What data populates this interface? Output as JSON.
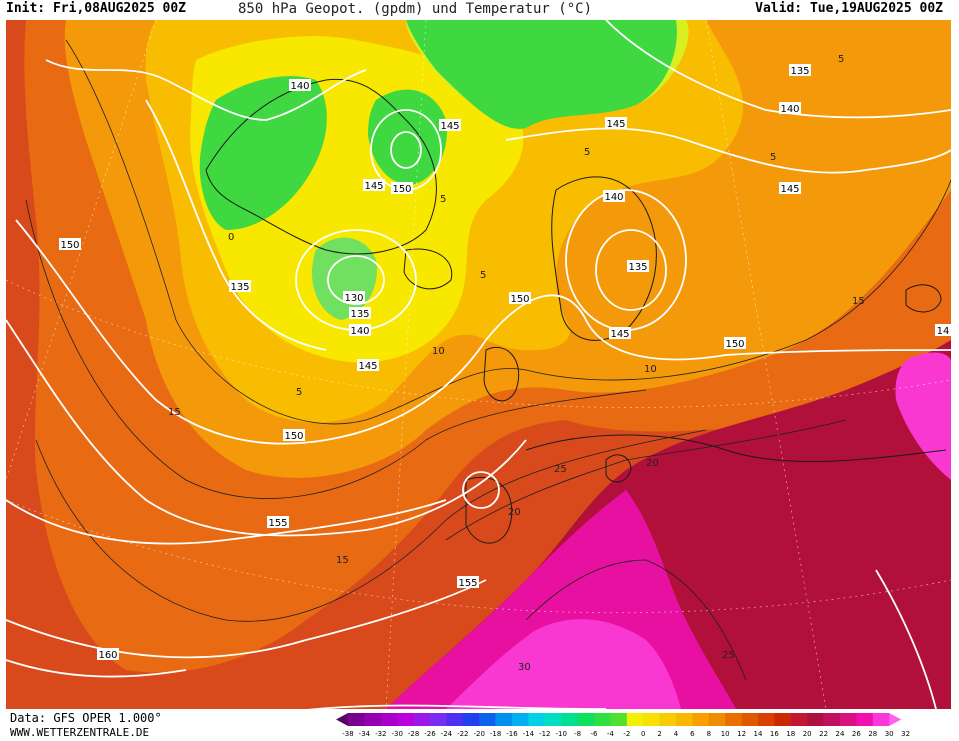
{
  "header": {
    "init": "Init: Fri,08AUG2025 00Z",
    "title": "850 hPa Geopot. (gpdm) und Temperatur (°C)",
    "valid": "Valid: Tue,19AUG2025 00Z"
  },
  "footer": {
    "source": "Data: GFS OPER 1.000°",
    "site": "WWW.WETTERZENTRALE.DE"
  },
  "legend": {
    "labels": [
      "-38",
      "-34",
      "-32",
      "-30",
      "-28",
      "-26",
      "-24",
      "-22",
      "-20",
      "-18",
      "-16",
      "-14",
      "-12",
      "-10",
      "-8",
      "-6",
      "-4",
      "-2",
      "0",
      "2",
      "4",
      "6",
      "8",
      "10",
      "12",
      "14",
      "16",
      "18",
      "20",
      "22",
      "24",
      "26",
      "28",
      "30",
      "32"
    ],
    "colors": [
      "#5a0066",
      "#7a0090",
      "#9400b0",
      "#a800c8",
      "#bb00dd",
      "#9a18e6",
      "#7a2cf0",
      "#5030f0",
      "#2040f0",
      "#1060f0",
      "#0090f0",
      "#00b0f0",
      "#00d0e8",
      "#00e0c0",
      "#00e090",
      "#10e060",
      "#30e040",
      "#50e030",
      "#f0f000",
      "#f8e000",
      "#f8cc00",
      "#f8b800",
      "#f8a000",
      "#f08c00",
      "#e87000",
      "#e05800",
      "#d84000",
      "#cc2800",
      "#c01830",
      "#b01040",
      "#c01060",
      "#d81080",
      "#f010b0",
      "#f838d8",
      "#ff60f0"
    ]
  },
  "map": {
    "colors": {
      "deep_orange": "#d84a1c",
      "orange_red": "#e86a12",
      "orange": "#f49a0a",
      "light_orange": "#f8bc00",
      "yellow": "#f8e800",
      "yellow_green": "#d8f020",
      "green": "#40d840",
      "green_light": "#70e060",
      "crimson": "#b0103a",
      "magenta": "#e810a0",
      "hot_pink": "#f838d0"
    },
    "geopotential_labels": [
      {
        "text": "140"
      },
      {
        "text": "135"
      },
      {
        "text": "145"
      },
      {
        "text": "140"
      },
      {
        "text": "145"
      },
      {
        "text": "150"
      },
      {
        "text": "145"
      },
      {
        "text": "145"
      },
      {
        "text": "140"
      },
      {
        "text": "150"
      },
      {
        "text": "135"
      },
      {
        "text": "135"
      },
      {
        "text": "130"
      },
      {
        "text": "135"
      },
      {
        "text": "140"
      },
      {
        "text": "150"
      },
      {
        "text": "145"
      },
      {
        "text": "150"
      },
      {
        "text": "145"
      },
      {
        "text": "150"
      },
      {
        "text": "155"
      },
      {
        "text": "155"
      },
      {
        "text": "160"
      },
      {
        "text": "14"
      }
    ],
    "temperature_labels": [
      {
        "text": "5"
      },
      {
        "text": "5"
      },
      {
        "text": "5"
      },
      {
        "text": "5"
      },
      {
        "text": "0"
      },
      {
        "text": "5"
      },
      {
        "text": "5"
      },
      {
        "text": "10"
      },
      {
        "text": "10"
      },
      {
        "text": "15"
      },
      {
        "text": "15"
      },
      {
        "text": "15"
      },
      {
        "text": "20"
      },
      {
        "text": "20"
      },
      {
        "text": "25"
      },
      {
        "text": "30"
      },
      {
        "text": "25"
      }
    ]
  }
}
